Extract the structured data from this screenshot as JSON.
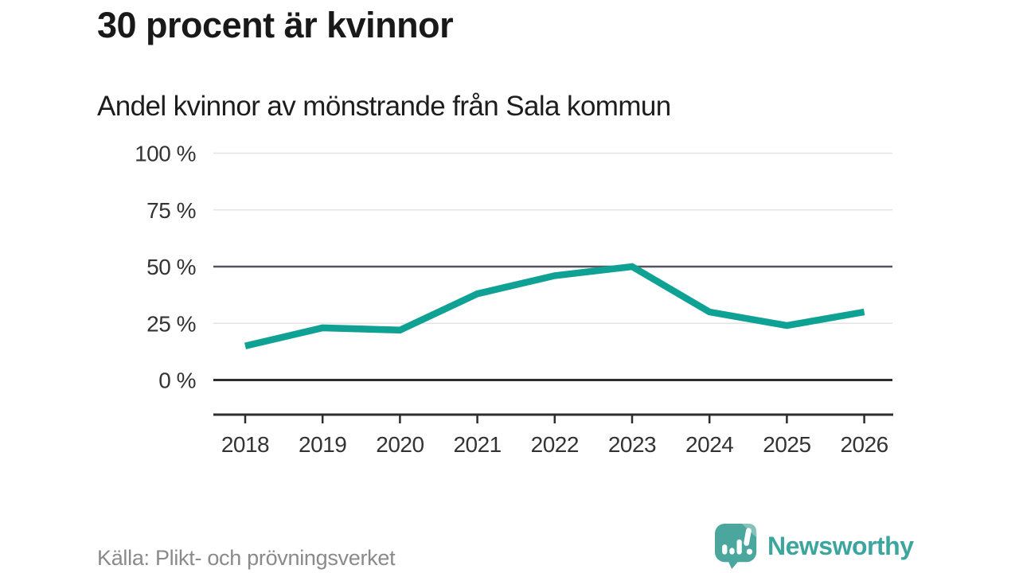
{
  "header": {
    "title": "30 procent är kvinnor",
    "subtitle": "Andel kvinnor av mönstrande från Sala kommun"
  },
  "chart_data": {
    "type": "line",
    "title": "30 procent är kvinnor",
    "subtitle": "Andel kvinnor av mönstrande från Sala kommun",
    "x": [
      "2018",
      "2019",
      "2020",
      "2021",
      "2022",
      "2023",
      "2024",
      "2025",
      "2026"
    ],
    "series": [
      {
        "name": "Andel kvinnor av mönstrande från Sala kommun",
        "values": [
          15,
          23,
          22,
          38,
          46,
          50,
          30,
          24,
          30
        ]
      }
    ],
    "unit": "%",
    "ylim": [
      0,
      100
    ],
    "yticks": [
      0,
      25,
      50,
      75,
      100
    ],
    "ytick_labels": [
      "0 %",
      "25 %",
      "50 %",
      "75 %",
      "100 %"
    ],
    "grid": true,
    "emphasized_gridline": 50,
    "legend": "none",
    "colors": {
      "line": "#0FA294",
      "grid_light": "#E3E3E3",
      "grid_strong": "#55525C",
      "axis": "#2D2D2D",
      "tick_text": "#333333"
    }
  },
  "footer": {
    "source": "Källa: Plikt- och prövningsverket",
    "brand_name": "Newsworthy",
    "brand_colors": {
      "text": "#3CA59E",
      "bubble": "#4BA79E",
      "fold": "#85C2BC",
      "glyph": "#FFFFFF"
    }
  }
}
